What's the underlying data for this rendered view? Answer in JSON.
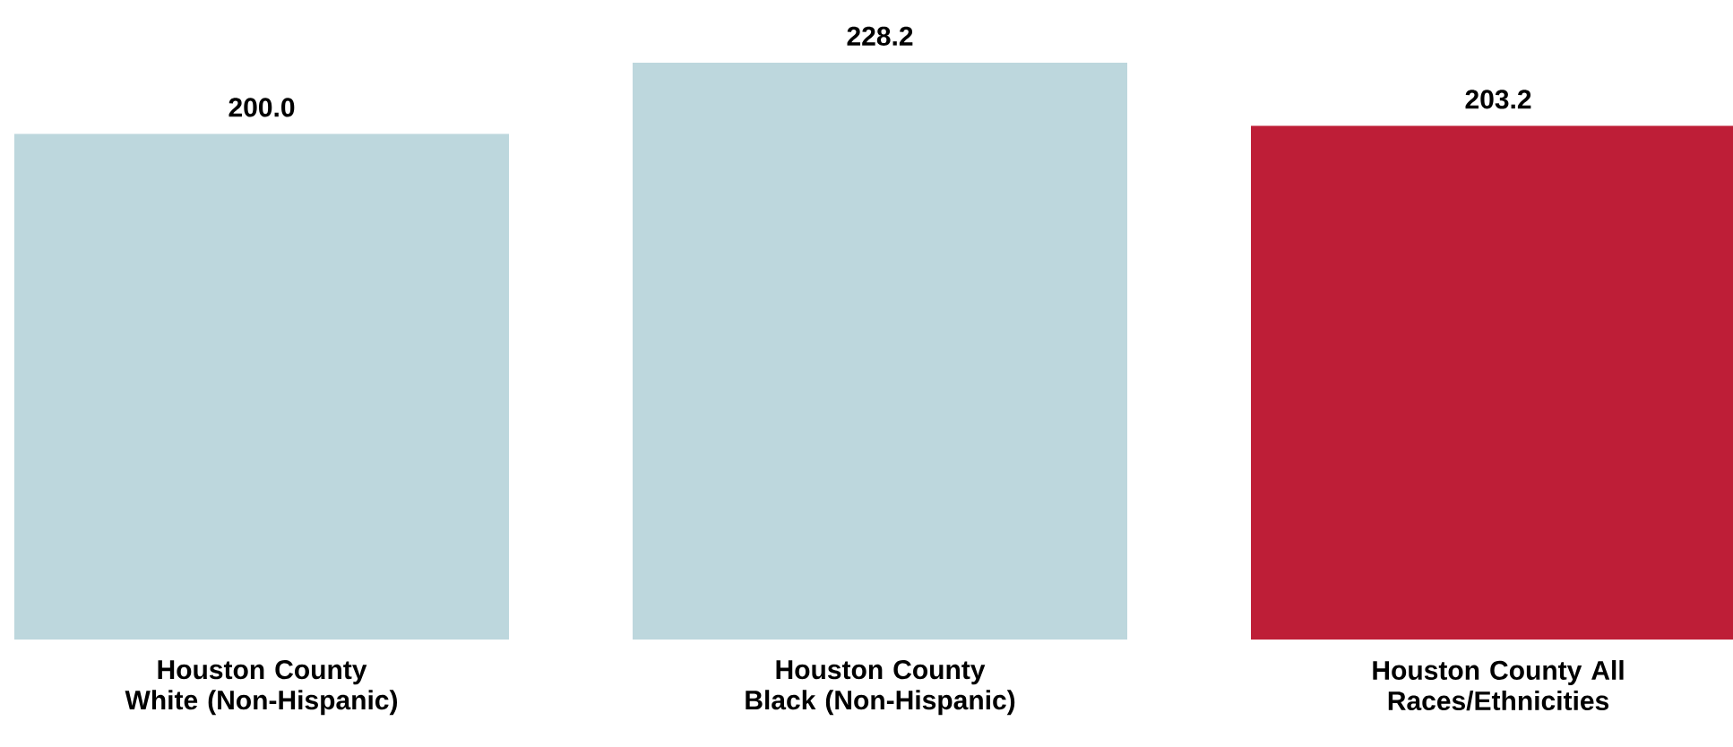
{
  "chart_data": {
    "type": "bar",
    "categories": [
      "Houston County White (Non-Hispanic)",
      "Houston County Black (Non-Hispanic)",
      "Houston County All Races/Ethnicities"
    ],
    "values": [
      200.0,
      228.2,
      203.2
    ],
    "colors": [
      "#bdd7dd",
      "#bdd7dd",
      "#be1e37"
    ],
    "value_labels": [
      "200.0",
      "228.2",
      "203.2"
    ]
  }
}
